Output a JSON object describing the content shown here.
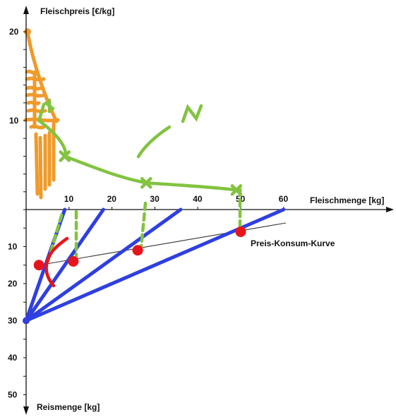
{
  "chart_data": {
    "type": "line",
    "title": "",
    "upper_panel": {
      "ylabel": "Fleischpreis [€/kg]",
      "y_ticks": [
        "20",
        "10"
      ],
      "demand_points": [
        {
          "menge": 3,
          "preis": 10
        },
        {
          "menge": 9,
          "preis": 6
        },
        {
          "menge": 28,
          "preis": 3
        },
        {
          "menge": 49,
          "preis": 2.2
        }
      ]
    },
    "shared_x": {
      "xlabel": "Fleischmenge [kg]",
      "x_ticks": [
        "10",
        "20",
        "30",
        "40",
        "50",
        "60"
      ]
    },
    "lower_panel": {
      "ylabel": "Reismenge [kg]",
      "y_ticks": [
        "10",
        "20",
        "30",
        "40",
        "50"
      ],
      "budget_lines": [
        {
          "rice_intercept": 30,
          "meat_intercept": 9
        },
        {
          "rice_intercept": 30,
          "meat_intercept": 18
        },
        {
          "rice_intercept": 30,
          "meat_intercept": 36
        },
        {
          "rice_intercept": 30,
          "meat_intercept": 60
        }
      ],
      "optimum_points": [
        {
          "menge": 3,
          "reis": 15
        },
        {
          "menge": 11,
          "reis": 14
        },
        {
          "menge": 26,
          "reis": 11
        },
        {
          "menge": 50,
          "reis": 6
        }
      ],
      "price_consumption_label": "Preis-Konsum-Kurve"
    },
    "colors": {
      "budget": "#2f3fe0",
      "optimum": "#e8141c",
      "demand": "#82c340",
      "area": "#f09a2a",
      "axis": "#111111"
    }
  }
}
